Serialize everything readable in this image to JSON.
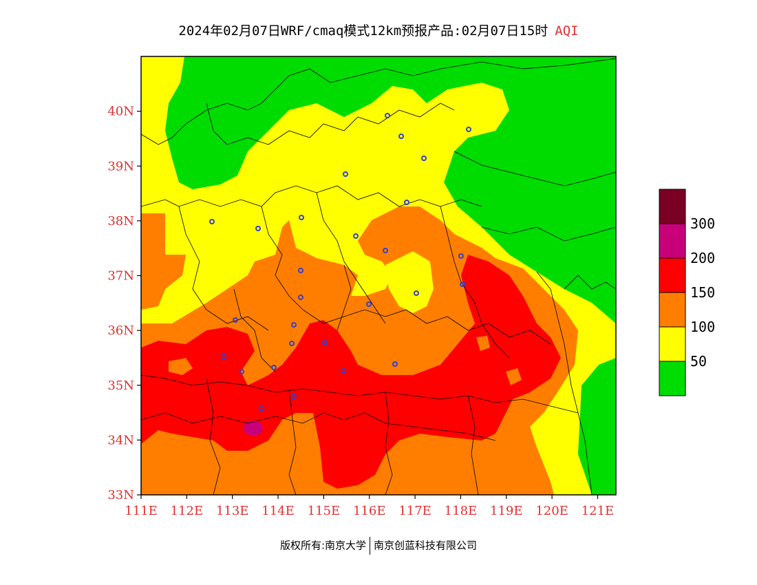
{
  "title": {
    "main": "2024年02月07日WRF/cmaq模式12km预报产品:02月07日15时",
    "product": "AQI"
  },
  "map": {
    "lat_labels": [
      "40N",
      "39N",
      "38N",
      "37N",
      "36N",
      "35N",
      "34N",
      "33N"
    ],
    "lon_labels": [
      "111E",
      "112E",
      "113E",
      "114E",
      "115E",
      "116E",
      "117E",
      "118E",
      "119E",
      "120E",
      "121E"
    ],
    "lon_range": [
      111,
      121.4
    ],
    "lat_range": [
      33,
      41
    ],
    "axis_label_color": "#e03030"
  },
  "legend": {
    "labels": [
      "50",
      "100",
      "150",
      "200",
      "300"
    ],
    "bins": [
      {
        "range": "0-50",
        "color": "#00dc00"
      },
      {
        "range": "50-100",
        "color": "#ffff00"
      },
      {
        "range": "100-150",
        "color": "#ff7e00"
      },
      {
        "range": "150-200",
        "color": "#ff0000"
      },
      {
        "range": "200-300",
        "color": "#c8007a"
      },
      {
        "range": ">300",
        "color": "#7a0024"
      }
    ]
  },
  "footer": {
    "left": "版权所有:南京大学",
    "right": "南京创蓝科技有限公司"
  }
}
